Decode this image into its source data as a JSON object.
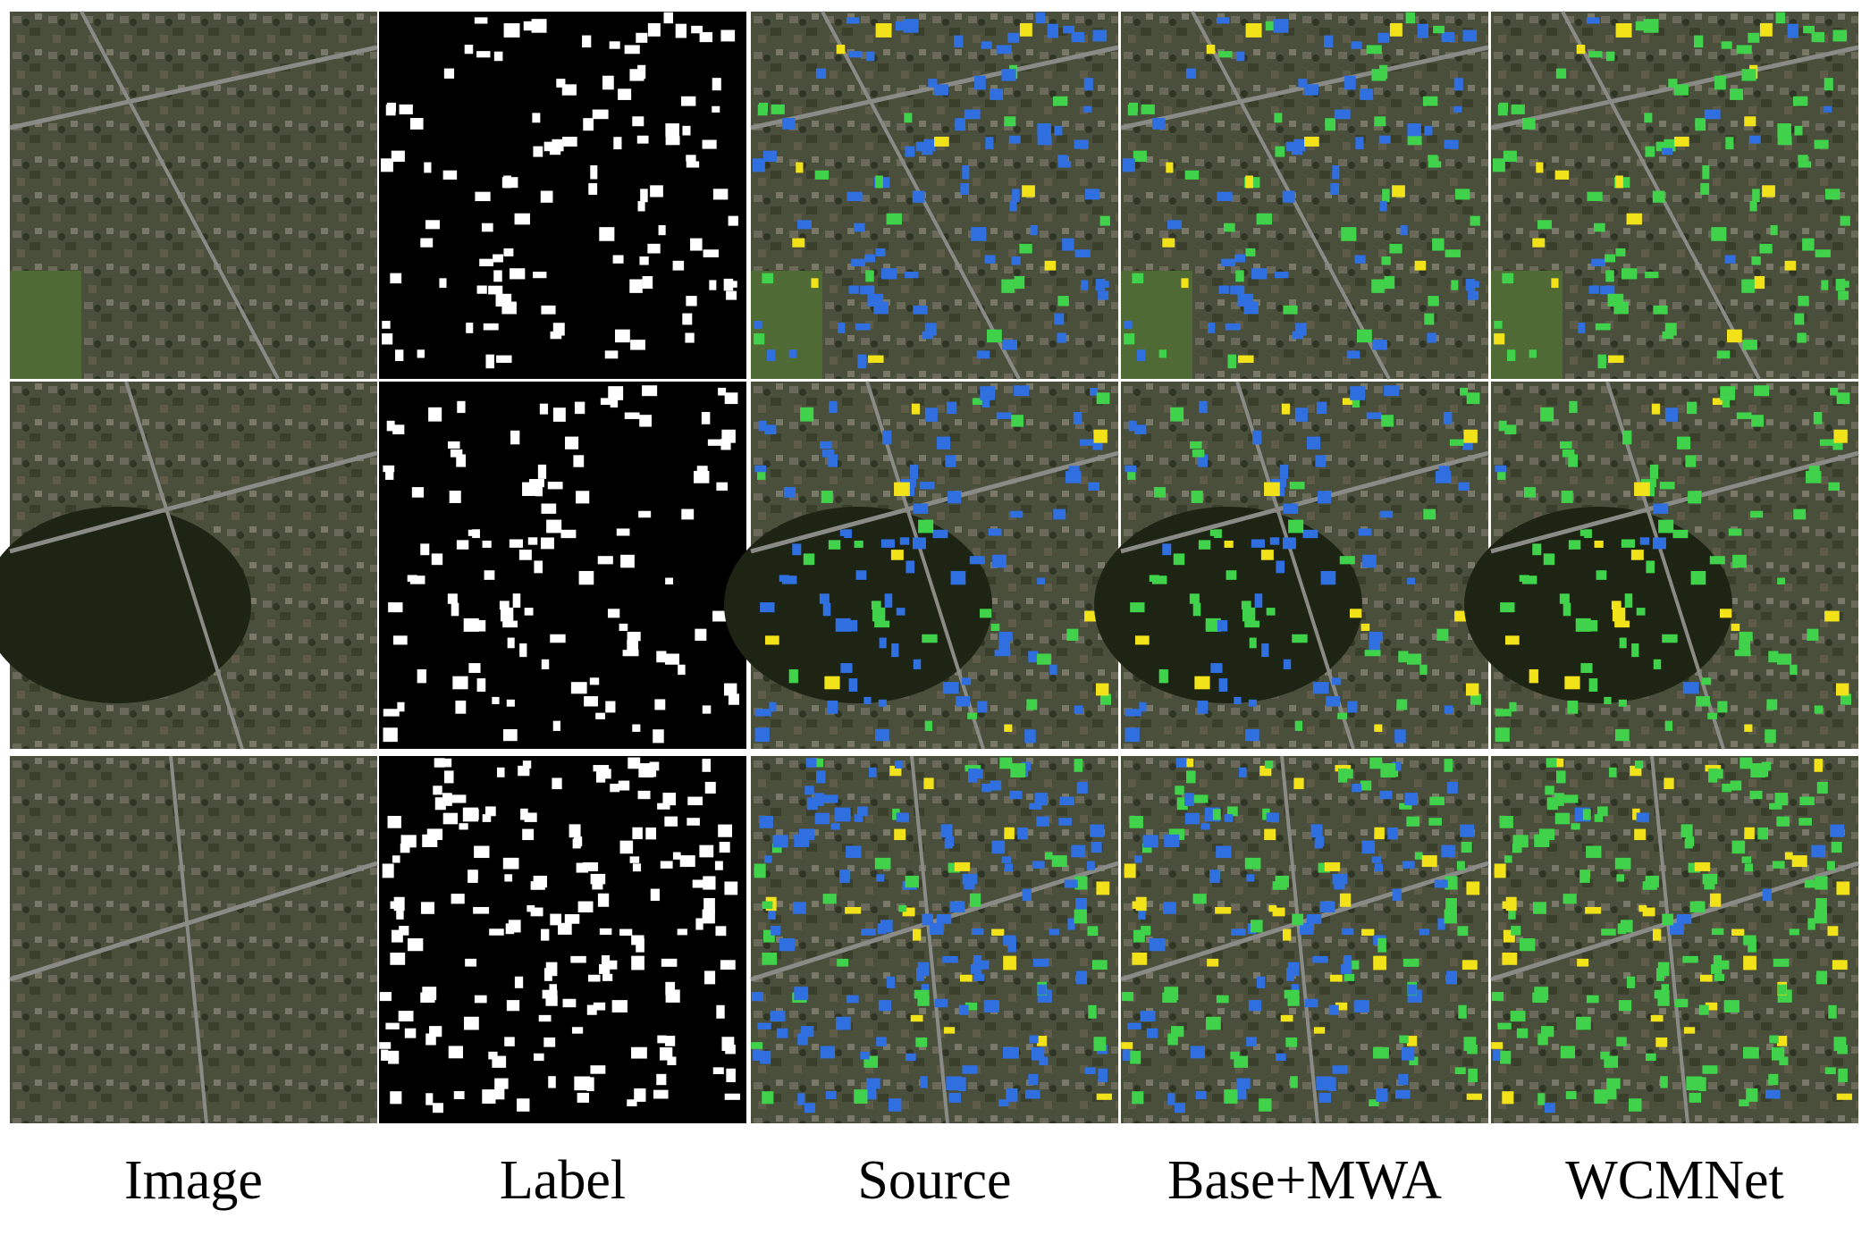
{
  "columns": [
    "Image",
    "Label",
    "Source",
    "Base+MWA",
    "WCMNet"
  ]
}
